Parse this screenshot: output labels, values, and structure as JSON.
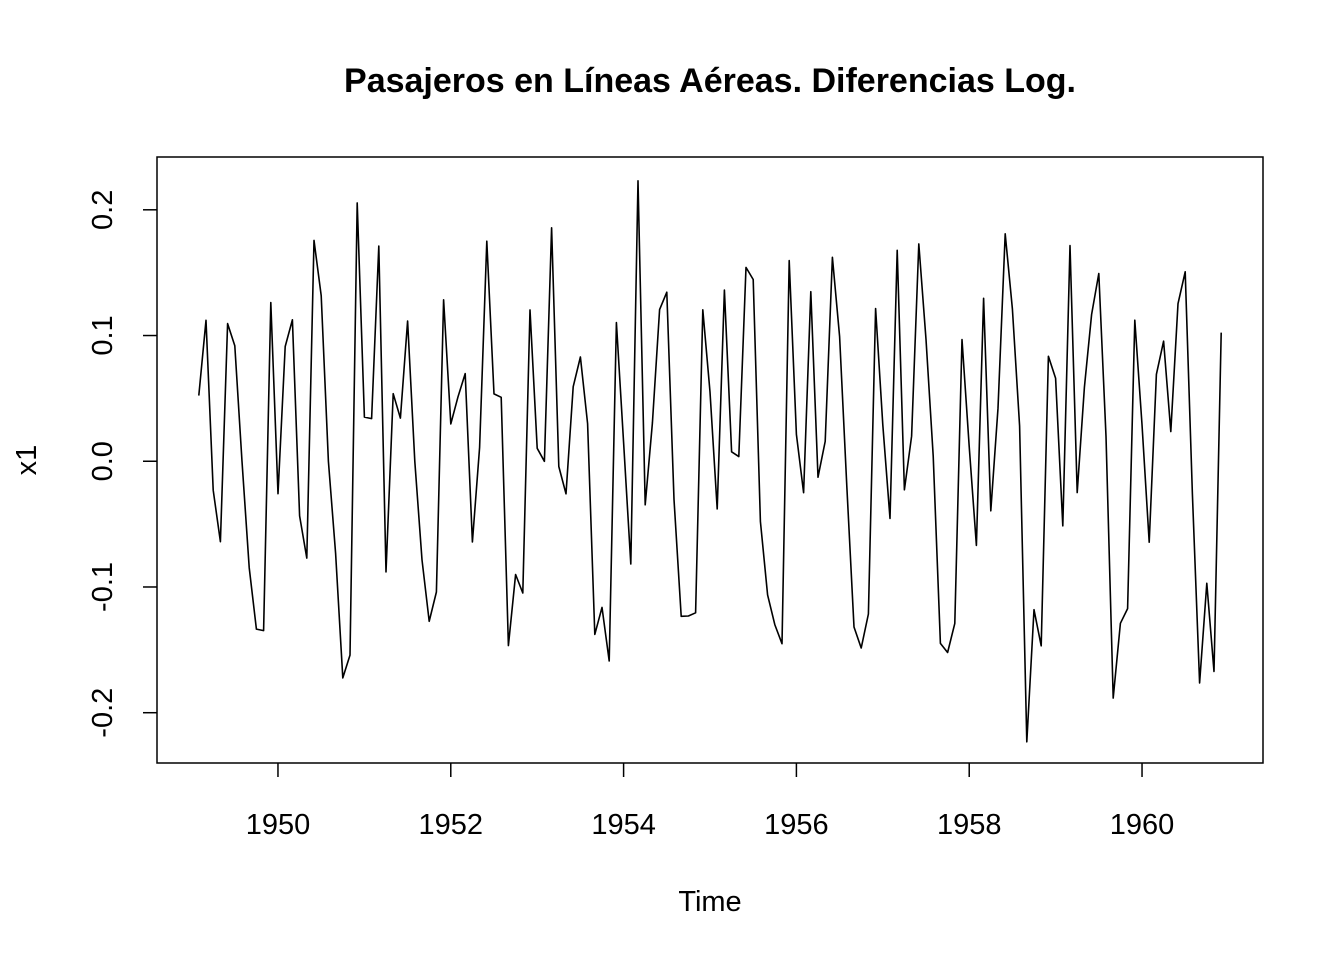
{
  "chart_data": {
    "type": "line",
    "title": "Pasajeros en Líneas Aéreas. Diferencias Log.",
    "xlabel": "Time",
    "ylabel": "x1",
    "start": 1949.0833333,
    "frequency": 12,
    "xlim": [
      1948.6,
      1961.4
    ],
    "ylim": [
      -0.24,
      0.242
    ],
    "xticks": [
      1950,
      1952,
      1954,
      1956,
      1958,
      1960
    ],
    "xtick_labels": [
      "1950",
      "1952",
      "1954",
      "1956",
      "1958",
      "1960"
    ],
    "yticks": [
      -0.2,
      -0.1,
      0.0,
      0.1,
      0.2
    ],
    "ytick_labels": [
      "-0.2",
      "-0.1",
      "0.0",
      "0.1",
      "0.2"
    ],
    "grid": false,
    "line_color": "#000000",
    "values": [
      0.0522,
      0.1121,
      -0.023,
      -0.064,
      0.1095,
      0.0919,
      0.0,
      -0.0846,
      -0.1335,
      -0.1347,
      0.1263,
      -0.0258,
      0.0913,
      0.1125,
      -0.0435,
      -0.077,
      0.1757,
      0.1318,
      0.0,
      -0.0732,
      -0.1723,
      -0.1542,
      0.2055,
      0.0351,
      0.0339,
      0.1711,
      -0.088,
      0.0537,
      0.0343,
      0.1115,
      0.0,
      -0.0784,
      -0.1273,
      -0.104,
      0.1284,
      0.0297,
      0.0513,
      0.0697,
      -0.0642,
      0.011,
      0.175,
      0.0536,
      0.0509,
      -0.1466,
      -0.0901,
      -0.1048,
      0.1204,
      0.0103,
      0.0,
      0.1857,
      -0.0042,
      -0.0259,
      0.0593,
      0.0829,
      0.0299,
      -0.1377,
      -0.1162,
      -0.1589,
      0.1103,
      0.0148,
      -0.0817,
      0.2231,
      -0.0346,
      0.0304,
      0.1206,
      0.1345,
      -0.0303,
      -0.1233,
      -0.1231,
      -0.1205,
      0.1205,
      0.0552,
      -0.0379,
      0.1362,
      0.0075,
      0.0037,
      0.1542,
      0.1446,
      -0.0478,
      -0.1063,
      -0.1299,
      -0.1451,
      0.1596,
      0.0214,
      -0.025,
      0.1349,
      -0.0127,
      0.0158,
      0.1622,
      0.0992,
      -0.0196,
      -0.1318,
      -0.1485,
      -0.1215,
      0.1215,
      0.029,
      -0.0455,
      0.1678,
      -0.0227,
      0.0199,
      0.1729,
      0.097,
      0.0043,
      -0.1449,
      -0.1521,
      -0.129,
      0.0968,
      0.0118,
      -0.0669,
      0.1296,
      -0.0394,
      0.0422,
      0.1809,
      0.1211,
      0.0281,
      -0.2231,
      -0.1181,
      -0.1468,
      0.0835,
      0.066,
      -0.0513,
      0.1715,
      -0.0249,
      0.0588,
      0.1167,
      0.1493,
      0.0199,
      -0.1884,
      -0.1289,
      -0.1172,
      0.1122,
      0.0292,
      -0.0644,
      0.0692,
      0.0955,
      0.0236,
      0.1253,
      0.1507,
      -0.0261,
      -0.1764,
      -0.0971,
      -0.1672,
      0.1023
    ]
  }
}
